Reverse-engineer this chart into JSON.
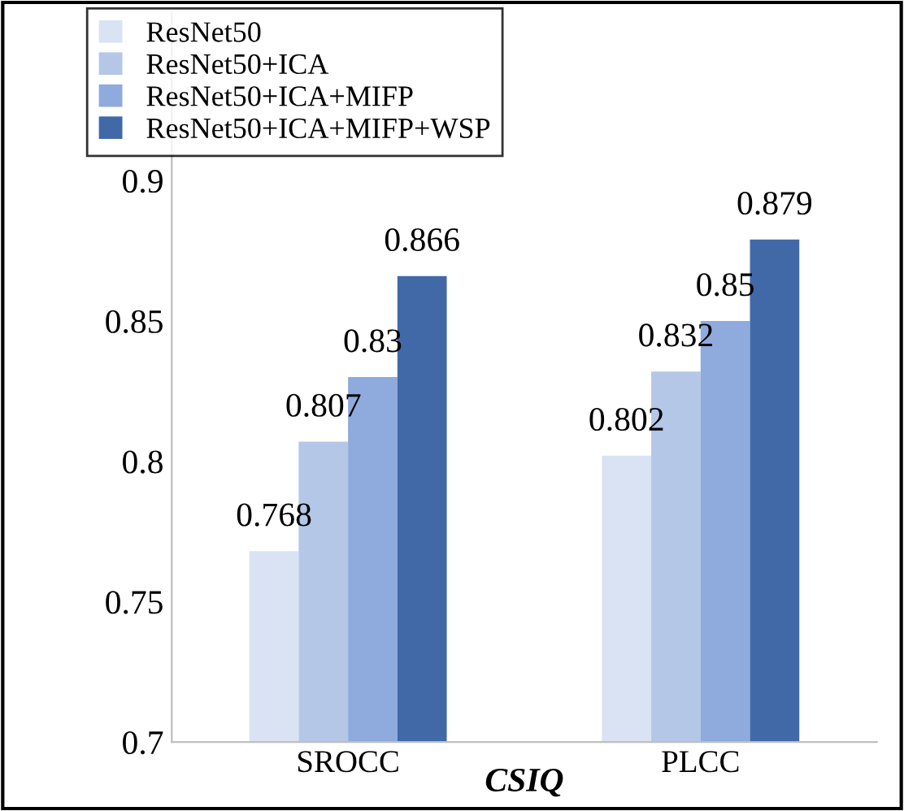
{
  "chart_data": {
    "type": "bar",
    "xlabel": "CSIQ",
    "categories": [
      "SROCC",
      "PLCC"
    ],
    "series": [
      {
        "name": "ResNet50",
        "color": "#dae3f3",
        "values": [
          0.768,
          0.802
        ]
      },
      {
        "name": "ResNet50+ICA",
        "color": "#b4c7e7",
        "values": [
          0.807,
          0.832
        ]
      },
      {
        "name": "ResNet50+ICA+MIFP",
        "color": "#8faadc",
        "values": [
          0.83,
          0.85
        ]
      },
      {
        "name": "ResNet50+ICA+MIFP+WSP",
        "color": "#4169a8",
        "values": [
          0.866,
          0.879
        ]
      }
    ],
    "ylim": [
      0.7,
      0.96
    ],
    "yticks": [
      0.7,
      0.75,
      0.8,
      0.85,
      0.9
    ],
    "data_labels": true,
    "legend": "top left",
    "grid": false
  }
}
